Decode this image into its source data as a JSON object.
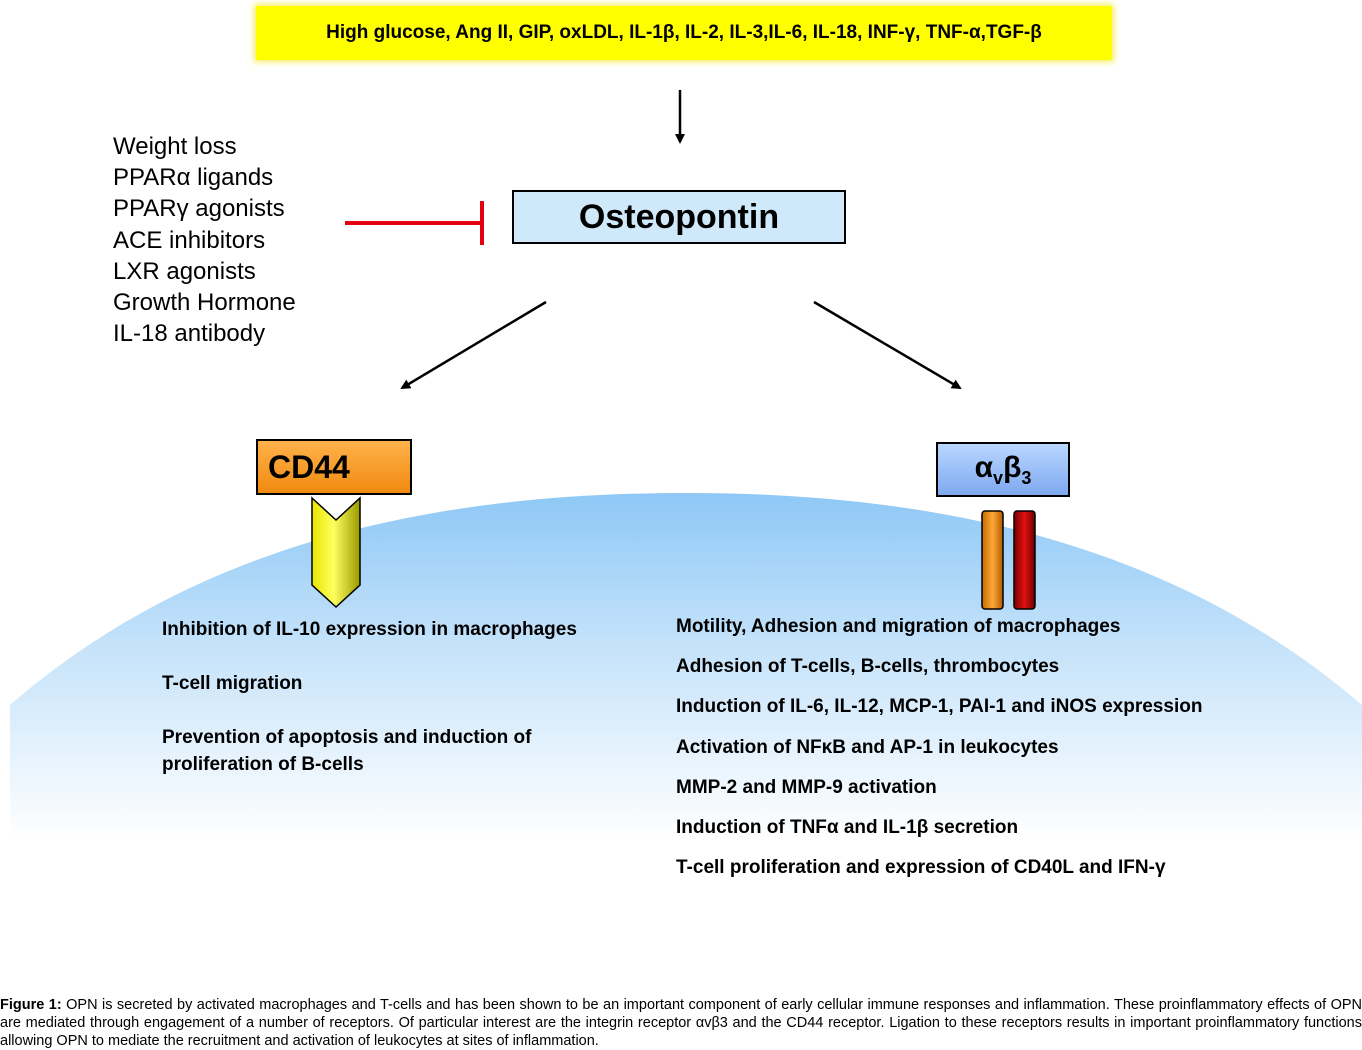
{
  "stimuli": "High glucose, Ang II, GIP, oxLDL, IL-1β, IL-2, IL-3,IL-6, IL-18, INF-γ, TNF-α,TGF-β",
  "inhibitors": [
    "Weight loss",
    "PPARα ligands",
    "PPARγ agonists",
    "ACE inhibitors",
    "LXR agonists",
    "Growth Hormone",
    "IL-18 antibody"
  ],
  "osteopontin": "Osteopontin",
  "cd44": "CD44",
  "integrin": {
    "base_a": "α",
    "sub_v": "v",
    "base_b": "β",
    "sub_3": "3"
  },
  "cd44_effects": [
    "Inhibition of IL-10 expression in macrophages",
    "T-cell migration",
    "Prevention of apoptosis and induction of proliferation of B-cells"
  ],
  "integrin_effects": [
    "Motility, Adhesion and migration of macrophages",
    "Adhesion of T-cells, B-cells, thrombocytes",
    "Induction of IL-6, IL-12, MCP-1, PAI-1 and iNOS expression",
    "Activation of NFκB and AP-1 in leukocytes",
    "MMP-2 and MMP-9 activation",
    "Induction of TNFα and IL-1β secretion",
    "T-cell proliferation and expression of CD40L and IFN-γ"
  ],
  "caption": {
    "label": "Figure 1:",
    "text": "OPN is secreted by activated macrophages and T-cells and has been shown to be an important component of early cellular immune responses and inflammation. These proinflammatory effects of OPN are mediated through engagement of a number of receptors. Of particular interest are the integrin receptor αvβ3 and the CD44 receptor. Ligation to these receptors results in important proinflammatory functions allowing OPN to mediate the recruitment and activation of leukocytes at sites of inflammation."
  },
  "colors": {
    "stimuli_bg": "#ffff00",
    "opn_bg": "#cfe9fb",
    "cd44": "#f5981f",
    "integrin": "#8fb5f5",
    "inhibit_bar": "#e3000f",
    "cell": "#a9d4f7"
  }
}
